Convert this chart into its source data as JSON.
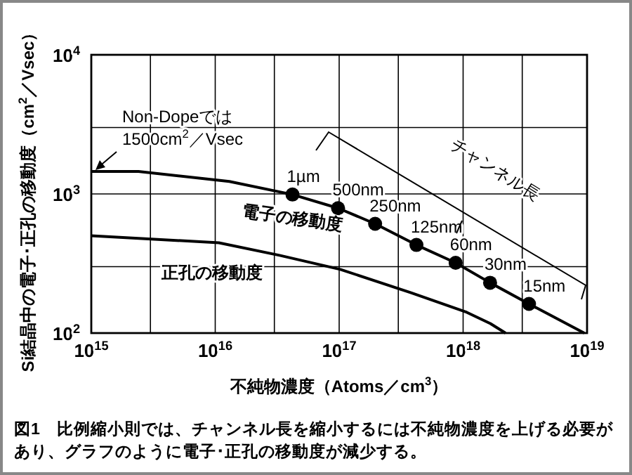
{
  "chart_data": {
    "type": "line",
    "xlabel": "不純物濃度（Atoms／cm$^{3}$）",
    "ylabel": "Si結晶中の電子･正孔の移動度（cm$^{2}$／Vsec）",
    "log": "xy",
    "grid": true,
    "marker": "none",
    "line_style": "solid",
    "xlim": [
      1000000000000000.0,
      1e+19
    ],
    "ylim": [
      100,
      10000
    ],
    "xticks": [
      {
        "value": 1000000000000000.0,
        "label": "10$^{15}$"
      },
      {
        "value": 3000000000000000.0,
        "label": null
      },
      {
        "value": 1e+16,
        "label": "10$^{16}$"
      },
      {
        "value": 3e+16,
        "label": null
      },
      {
        "value": 1e+17,
        "label": "10$^{17}$"
      },
      {
        "value": 3e+17,
        "label": null
      },
      {
        "value": 1e+18,
        "label": "10$^{18}$"
      },
      {
        "value": 3e+18,
        "label": null
      },
      {
        "value": 1e+19,
        "label": "10$^{19}$"
      }
    ],
    "yticks": [
      {
        "value": 100,
        "label": "10$^{2}$"
      },
      {
        "value": 300,
        "label": null
      },
      {
        "value": 1000,
        "label": "10$^{3}$"
      },
      {
        "value": 3000,
        "label": null
      },
      {
        "value": 10000,
        "label": "10$^{4}$"
      }
    ],
    "series": [
      {
        "name": "電子の移動度",
        "type": "line",
        "color": "#000000",
        "x": [
          1000000000000000.0,
          2400000000000000.0,
          1.3e+16,
          4.2e+16,
          9.8e+16,
          1.95e+17,
          4.2e+17,
          8.7e+17,
          1.65e+18,
          3.4e+18,
          9.5e+18
        ],
        "values": [
          1450,
          1450,
          1230,
          990,
          790,
          610,
          430,
          320,
          230,
          162,
          100
        ]
      },
      {
        "name": "正孔の移動度",
        "type": "line",
        "color": "#000000",
        "x": [
          1000000000000000.0,
          1.07e+16,
          3.3e+16,
          1.02e+17,
          3.8e+17,
          1.07e+18,
          1.66e+18,
          2.2e+18
        ],
        "values": [
          500,
          446,
          362,
          287,
          195,
          141,
          117,
          100
        ]
      },
      {
        "type": "scatter",
        "marker": "circle",
        "color": "#000000",
        "x": [
          4.2e+16,
          9.8e+16,
          1.95e+17,
          4.2e+17,
          8.7e+17,
          1.65e+18,
          3.4e+18
        ],
        "values": [
          990,
          790,
          610,
          430,
          320,
          230,
          162
        ]
      }
    ],
    "annotations": [
      {
        "text": "Non-Dopeでは 1500cm$^{2}$／Vsec",
        "x": 1000000000000000.0,
        "y": 1450
      },
      {
        "text": "1µm",
        "x": 4.2e+16,
        "y": 990
      },
      {
        "text": "500nm",
        "x": 9.8e+16,
        "y": 790
      },
      {
        "text": "250nm",
        "x": 1.95e+17,
        "y": 610
      },
      {
        "text": "125nm",
        "x": 4.2e+17,
        "y": 430
      },
      {
        "text": "60nm",
        "x": 8.7e+17,
        "y": 320
      },
      {
        "text": "30nm",
        "x": 1.65e+18,
        "y": 230
      },
      {
        "text": "15nm",
        "x": 3.4e+18,
        "y": 162
      },
      "チャンネル長",
      "図1　比例縮小則では、チャンネル長を縮小するには不純物濃度を上げる必要があり、グラフのように電子･正孔の移動度が減少する。"
    ]
  }
}
